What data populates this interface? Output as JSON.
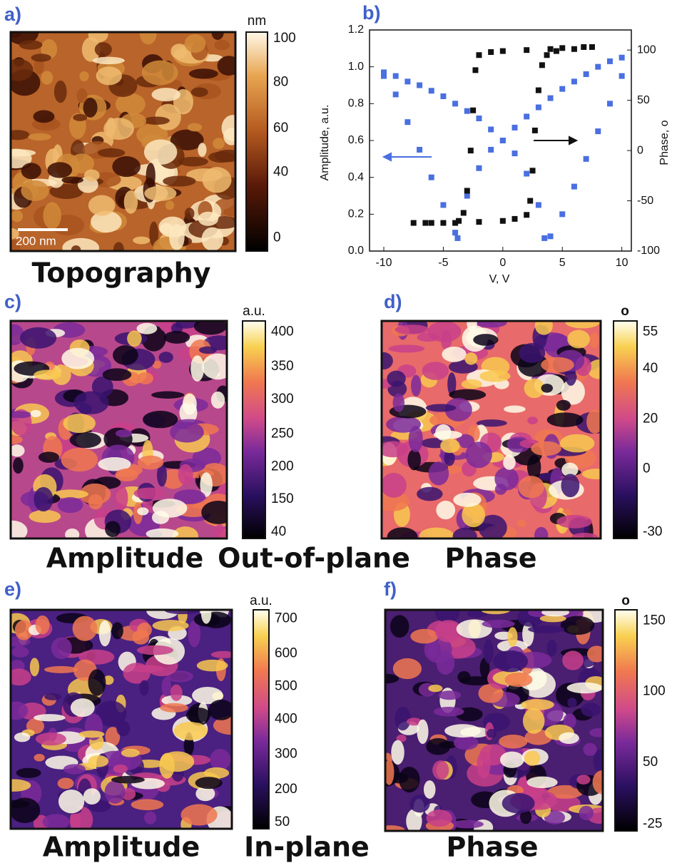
{
  "maps": [
    {
      "label": "a)",
      "unit": "nm",
      "colorbar": [
        100,
        80,
        60,
        40,
        0
      ],
      "caption": "Topography",
      "scale_bar": "200 nm"
    },
    {
      "label": "c)",
      "unit": "a.u.",
      "colorbar": [
        400,
        350,
        300,
        250,
        200,
        150,
        40
      ],
      "caption": "Amplitude"
    },
    {
      "label": "d)",
      "unit": "o",
      "colorbar": [
        55,
        40,
        20,
        0,
        -30
      ],
      "caption": "Phase"
    },
    {
      "label": "e)",
      "unit": "a.u.",
      "colorbar": [
        700,
        600,
        500,
        400,
        300,
        200,
        50
      ],
      "caption": "Amplitude"
    },
    {
      "label": "f)",
      "unit": "o",
      "colorbar": [
        150,
        100,
        50,
        -25
      ],
      "caption": "Phase"
    }
  ],
  "row_labels": [
    "Out-of-plane",
    "In-plane"
  ],
  "chart_data": {
    "type": "scatter",
    "label": "b)",
    "x_label": "V, V",
    "y_label": "Amplitude, a.u.",
    "y2_label": "Phase, o",
    "xlim": [
      -11.2,
      10.8
    ],
    "xticks": [
      -10,
      -5,
      0,
      5,
      10
    ],
    "ylim": [
      0,
      1.2
    ],
    "yticks": [
      {
        "value": 0,
        "label": "0.0"
      },
      0.2,
      0.4,
      0.6,
      0.8,
      {
        "value": 1,
        "label": "1.0"
      },
      1.2
    ],
    "y2lim": [
      -100,
      120
    ],
    "y2ticks": [
      -100,
      -50,
      0,
      50,
      100
    ],
    "series": [
      {
        "name": "Amplitude",
        "color": "#4a6fe0",
        "x": [
          -10,
          -9,
          -8,
          -7,
          -6,
          -5,
          -4,
          -3.8,
          -3,
          -2,
          -1,
          0,
          1,
          2,
          3,
          4,
          5,
          6,
          7,
          8,
          9,
          10,
          10,
          9,
          8,
          7,
          6,
          5,
          4,
          3.5,
          3,
          2,
          1,
          0,
          -1,
          -2,
          -3,
          -4,
          -5,
          -6,
          -7,
          -8,
          -9,
          -10
        ],
        "values": [
          0.95,
          0.85,
          0.7,
          0.55,
          0.4,
          0.25,
          0.1,
          0.07,
          0.3,
          0.45,
          0.55,
          0.6,
          0.67,
          0.73,
          0.78,
          0.83,
          0.88,
          0.92,
          0.96,
          1.0,
          1.03,
          1.05,
          0.95,
          0.8,
          0.65,
          0.5,
          0.35,
          0.2,
          0.08,
          0.07,
          0.25,
          0.42,
          0.53,
          0.6,
          0.66,
          0.72,
          0.76,
          0.8,
          0.84,
          0.87,
          0.9,
          0.92,
          0.95,
          0.97
        ]
      },
      {
        "name": "Phase",
        "color": "#111111",
        "axis": "y2",
        "x": [
          -7.5,
          -6,
          -4,
          -2,
          0,
          1,
          2,
          2.3,
          2.5,
          2.7,
          3,
          3.3,
          3.7,
          4.5,
          6,
          7.5,
          6.8,
          5,
          4,
          2,
          0,
          -1,
          -2,
          -2.3,
          -2.5,
          -2.7,
          -3,
          -3.3,
          -3.7,
          -5,
          -6.5
        ],
        "values": [
          -72,
          -72,
          -72,
          -71,
          -70,
          -68,
          -64,
          -50,
          -20,
          20,
          60,
          85,
          95,
          99,
          101,
          103,
          103,
          102,
          101,
          100,
          99,
          98,
          95,
          80,
          40,
          0,
          -40,
          -62,
          -70,
          -72,
          -72
        ]
      }
    ]
  }
}
